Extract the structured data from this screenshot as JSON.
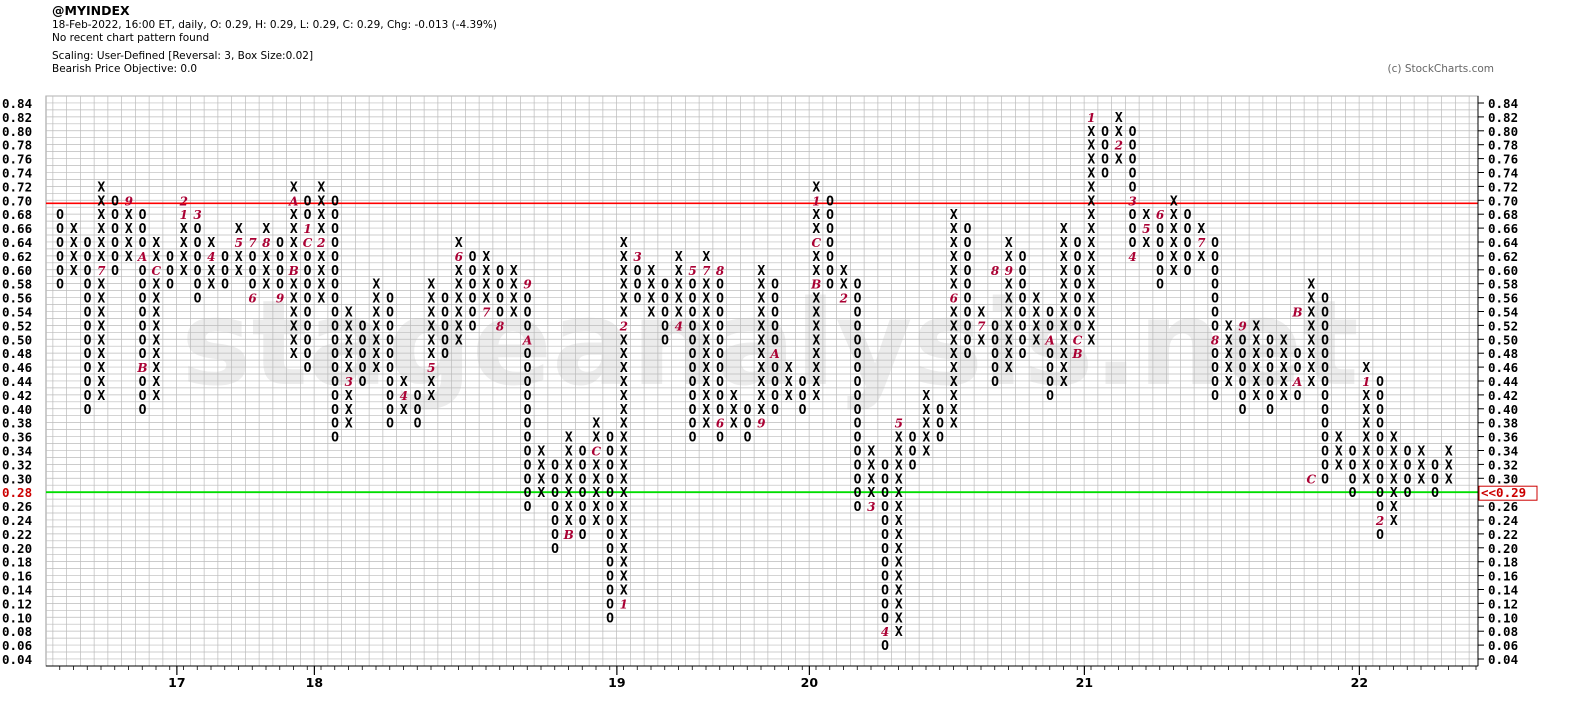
{
  "header": {
    "symbol": "@MYINDEX",
    "quote_line": "18-Feb-2022, 16:00 ET, daily, O: 0.29, H: 0.29, L: 0.29, C: 0.29, Chg: -0.013 (-4.39%)",
    "pattern_line": "No recent chart pattern found",
    "scaling_line": "Scaling: User-Defined [Reversal: 3, Box Size:0.02]",
    "objective_line": "Bearish Price Objective: 0.0"
  },
  "copyright": "(c) StockCharts.com",
  "watermark": "stageanalysis.net",
  "colors": {
    "resistance": "#ff0000",
    "support": "#00dd00",
    "month_marker": "#aa0033",
    "grid": "#bbbbbb",
    "watermark": "#ececec"
  },
  "chart_data": {
    "type": "point-and-figure",
    "box_size": 0.02,
    "reversal": 3,
    "ylim": [
      0.04,
      0.84
    ],
    "y_ticks": [
      "0.84",
      "0.82",
      "0.80",
      "0.78",
      "0.76",
      "0.74",
      "0.72",
      "0.70",
      "0.68",
      "0.66",
      "0.64",
      "0.62",
      "0.60",
      "0.58",
      "0.56",
      "0.54",
      "0.52",
      "0.50",
      "0.48",
      "0.46",
      "0.44",
      "0.42",
      "0.40",
      "0.38",
      "0.36",
      "0.34",
      "0.32",
      "0.30",
      "0.28",
      "0.26",
      "0.24",
      "0.22",
      "0.20",
      "0.18",
      "0.16",
      "0.14",
      "0.12",
      "0.10",
      "0.08",
      "0.06",
      "0.04"
    ],
    "x_labels": [
      {
        "label": "17",
        "column": 9
      },
      {
        "label": "18",
        "column": 19
      },
      {
        "label": "19",
        "column": 41
      },
      {
        "label": "20",
        "column": 55
      },
      {
        "label": "21",
        "column": 75
      },
      {
        "label": "22",
        "column": 95
      }
    ],
    "resistance_level": 0.7,
    "support_level": 0.29,
    "last_price_label": "<<0.29",
    "left_price_label": "0.28",
    "columns": [
      {
        "t": "O",
        "hi": 0.68,
        "lo": 0.58
      },
      {
        "t": "X",
        "hi": 0.66,
        "lo": 0.6
      },
      {
        "t": "O",
        "hi": 0.64,
        "lo": 0.4
      },
      {
        "t": "X",
        "hi": 0.72,
        "lo": 0.42
      },
      {
        "t": "O",
        "hi": 0.7,
        "lo": 0.6
      },
      {
        "t": "X",
        "hi": 0.7,
        "lo": 0.62
      },
      {
        "t": "O",
        "hi": 0.68,
        "lo": 0.4
      },
      {
        "t": "X",
        "hi": 0.64,
        "lo": 0.42
      },
      {
        "t": "O",
        "hi": 0.62,
        "lo": 0.58
      },
      {
        "t": "X",
        "hi": 0.7,
        "lo": 0.6
      },
      {
        "t": "O",
        "hi": 0.68,
        "lo": 0.56
      },
      {
        "t": "X",
        "hi": 0.64,
        "lo": 0.58
      },
      {
        "t": "O",
        "hi": 0.62,
        "lo": 0.58
      },
      {
        "t": "X",
        "hi": 0.66,
        "lo": 0.6
      },
      {
        "t": "O",
        "hi": 0.64,
        "lo": 0.56
      },
      {
        "t": "X",
        "hi": 0.66,
        "lo": 0.58
      },
      {
        "t": "O",
        "hi": 0.64,
        "lo": 0.56
      },
      {
        "t": "X",
        "hi": 0.72,
        "lo": 0.48
      },
      {
        "t": "O",
        "hi": 0.7,
        "lo": 0.46
      },
      {
        "t": "X",
        "hi": 0.72,
        "lo": 0.56
      },
      {
        "t": "O",
        "hi": 0.7,
        "lo": 0.36
      },
      {
        "t": "X",
        "hi": 0.54,
        "lo": 0.38
      },
      {
        "t": "O",
        "hi": 0.52,
        "lo": 0.44
      },
      {
        "t": "X",
        "hi": 0.58,
        "lo": 0.46
      },
      {
        "t": "O",
        "hi": 0.56,
        "lo": 0.38
      },
      {
        "t": "X",
        "hi": 0.44,
        "lo": 0.4
      },
      {
        "t": "O",
        "hi": 0.42,
        "lo": 0.38
      },
      {
        "t": "X",
        "hi": 0.58,
        "lo": 0.42
      },
      {
        "t": "O",
        "hi": 0.56,
        "lo": 0.48
      },
      {
        "t": "X",
        "hi": 0.64,
        "lo": 0.5
      },
      {
        "t": "O",
        "hi": 0.62,
        "lo": 0.52
      },
      {
        "t": "X",
        "hi": 0.62,
        "lo": 0.54
      },
      {
        "t": "O",
        "hi": 0.6,
        "lo": 0.52
      },
      {
        "t": "X",
        "hi": 0.6,
        "lo": 0.54
      },
      {
        "t": "O",
        "hi": 0.58,
        "lo": 0.26
      },
      {
        "t": "X",
        "hi": 0.34,
        "lo": 0.28
      },
      {
        "t": "O",
        "hi": 0.32,
        "lo": 0.2
      },
      {
        "t": "X",
        "hi": 0.36,
        "lo": 0.24
      },
      {
        "t": "O",
        "hi": 0.34,
        "lo": 0.22
      },
      {
        "t": "X",
        "hi": 0.38,
        "lo": 0.24
      },
      {
        "t": "O",
        "hi": 0.36,
        "lo": 0.1
      },
      {
        "t": "X",
        "hi": 0.64,
        "lo": 0.12
      },
      {
        "t": "O",
        "hi": 0.62,
        "lo": 0.56
      },
      {
        "t": "X",
        "hi": 0.6,
        "lo": 0.54
      },
      {
        "t": "O",
        "hi": 0.58,
        "lo": 0.5
      },
      {
        "t": "X",
        "hi": 0.62,
        "lo": 0.52
      },
      {
        "t": "O",
        "hi": 0.6,
        "lo": 0.36
      },
      {
        "t": "X",
        "hi": 0.62,
        "lo": 0.38
      },
      {
        "t": "O",
        "hi": 0.6,
        "lo": 0.36
      },
      {
        "t": "X",
        "hi": 0.42,
        "lo": 0.38
      },
      {
        "t": "O",
        "hi": 0.4,
        "lo": 0.36
      },
      {
        "t": "X",
        "hi": 0.6,
        "lo": 0.38
      },
      {
        "t": "O",
        "hi": 0.58,
        "lo": 0.4
      },
      {
        "t": "X",
        "hi": 0.46,
        "lo": 0.42
      },
      {
        "t": "O",
        "hi": 0.44,
        "lo": 0.4
      },
      {
        "t": "X",
        "hi": 0.72,
        "lo": 0.42
      },
      {
        "t": "O",
        "hi": 0.7,
        "lo": 0.58
      },
      {
        "t": "X",
        "hi": 0.6,
        "lo": 0.56
      },
      {
        "t": "O",
        "hi": 0.58,
        "lo": 0.26
      },
      {
        "t": "X",
        "hi": 0.34,
        "lo": 0.28
      },
      {
        "t": "O",
        "hi": 0.32,
        "lo": 0.06
      },
      {
        "t": "X",
        "hi": 0.38,
        "lo": 0.08
      },
      {
        "t": "O",
        "hi": 0.36,
        "lo": 0.32
      },
      {
        "t": "X",
        "hi": 0.42,
        "lo": 0.34
      },
      {
        "t": "O",
        "hi": 0.4,
        "lo": 0.36
      },
      {
        "t": "X",
        "hi": 0.68,
        "lo": 0.38
      },
      {
        "t": "O",
        "hi": 0.66,
        "lo": 0.48
      },
      {
        "t": "X",
        "hi": 0.54,
        "lo": 0.5
      },
      {
        "t": "O",
        "hi": 0.52,
        "lo": 0.44
      },
      {
        "t": "X",
        "hi": 0.64,
        "lo": 0.46
      },
      {
        "t": "O",
        "hi": 0.62,
        "lo": 0.48
      },
      {
        "t": "X",
        "hi": 0.56,
        "lo": 0.5
      },
      {
        "t": "O",
        "hi": 0.54,
        "lo": 0.42
      },
      {
        "t": "X",
        "hi": 0.66,
        "lo": 0.44
      },
      {
        "t": "O",
        "hi": 0.64,
        "lo": 0.48
      },
      {
        "t": "X",
        "hi": 0.82,
        "lo": 0.5
      },
      {
        "t": "O",
        "hi": 0.8,
        "lo": 0.74
      },
      {
        "t": "X",
        "hi": 0.82,
        "lo": 0.76
      },
      {
        "t": "O",
        "hi": 0.8,
        "lo": 0.62
      },
      {
        "t": "X",
        "hi": 0.68,
        "lo": 0.64
      },
      {
        "t": "O",
        "hi": 0.66,
        "lo": 0.58
      },
      {
        "t": "X",
        "hi": 0.7,
        "lo": 0.6
      },
      {
        "t": "O",
        "hi": 0.68,
        "lo": 0.6
      },
      {
        "t": "X",
        "hi": 0.66,
        "lo": 0.62
      },
      {
        "t": "O",
        "hi": 0.64,
        "lo": 0.42
      },
      {
        "t": "X",
        "hi": 0.52,
        "lo": 0.44
      },
      {
        "t": "O",
        "hi": 0.5,
        "lo": 0.4
      },
      {
        "t": "X",
        "hi": 0.52,
        "lo": 0.42
      },
      {
        "t": "O",
        "hi": 0.5,
        "lo": 0.4
      },
      {
        "t": "X",
        "hi": 0.5,
        "lo": 0.42
      },
      {
        "t": "O",
        "hi": 0.48,
        "lo": 0.42
      },
      {
        "t": "X",
        "hi": 0.58,
        "lo": 0.44
      },
      {
        "t": "O",
        "hi": 0.56,
        "lo": 0.3
      },
      {
        "t": "X",
        "hi": 0.36,
        "lo": 0.32
      },
      {
        "t": "O",
        "hi": 0.34,
        "lo": 0.28
      },
      {
        "t": "X",
        "hi": 0.46,
        "lo": 0.3
      },
      {
        "t": "O",
        "hi": 0.44,
        "lo": 0.22
      },
      {
        "t": "X",
        "hi": 0.36,
        "lo": 0.24
      },
      {
        "t": "O",
        "hi": 0.34,
        "lo": 0.28
      },
      {
        "t": "X",
        "hi": 0.34,
        "lo": 0.3
      },
      {
        "t": "O",
        "hi": 0.32,
        "lo": 0.28
      },
      {
        "t": "X",
        "hi": 0.34,
        "lo": 0.3
      }
    ],
    "month_markers": [
      {
        "col": 3,
        "v": 0.6,
        "m": "7"
      },
      {
        "col": 5,
        "v": 0.7,
        "m": "9"
      },
      {
        "col": 6,
        "v": 0.62,
        "m": "A"
      },
      {
        "col": 6,
        "v": 0.46,
        "m": "B"
      },
      {
        "col": 7,
        "v": 0.6,
        "m": "C"
      },
      {
        "col": 9,
        "v": 0.7,
        "m": "2"
      },
      {
        "col": 9,
        "v": 0.68,
        "m": "1"
      },
      {
        "col": 10,
        "v": 0.68,
        "m": "3"
      },
      {
        "col": 11,
        "v": 0.62,
        "m": "4"
      },
      {
        "col": 13,
        "v": 0.64,
        "m": "5"
      },
      {
        "col": 14,
        "v": 0.56,
        "m": "6"
      },
      {
        "col": 14,
        "v": 0.64,
        "m": "7"
      },
      {
        "col": 15,
        "v": 0.64,
        "m": "8"
      },
      {
        "col": 16,
        "v": 0.56,
        "m": "9"
      },
      {
        "col": 17,
        "v": 0.7,
        "m": "A"
      },
      {
        "col": 17,
        "v": 0.6,
        "m": "B"
      },
      {
        "col": 18,
        "v": 0.64,
        "m": "C"
      },
      {
        "col": 18,
        "v": 0.66,
        "m": "1"
      },
      {
        "col": 19,
        "v": 0.64,
        "m": "2"
      },
      {
        "col": 21,
        "v": 0.44,
        "m": "3"
      },
      {
        "col": 25,
        "v": 0.42,
        "m": "4"
      },
      {
        "col": 27,
        "v": 0.46,
        "m": "5"
      },
      {
        "col": 29,
        "v": 0.62,
        "m": "6"
      },
      {
        "col": 31,
        "v": 0.54,
        "m": "7"
      },
      {
        "col": 32,
        "v": 0.52,
        "m": "8"
      },
      {
        "col": 34,
        "v": 0.58,
        "m": "9"
      },
      {
        "col": 34,
        "v": 0.5,
        "m": "A"
      },
      {
        "col": 37,
        "v": 0.22,
        "m": "B"
      },
      {
        "col": 39,
        "v": 0.34,
        "m": "C"
      },
      {
        "col": 41,
        "v": 0.12,
        "m": "1"
      },
      {
        "col": 41,
        "v": 0.52,
        "m": "2"
      },
      {
        "col": 42,
        "v": 0.62,
        "m": "3"
      },
      {
        "col": 45,
        "v": 0.52,
        "m": "4"
      },
      {
        "col": 46,
        "v": 0.6,
        "m": "5"
      },
      {
        "col": 48,
        "v": 0.38,
        "m": "6"
      },
      {
        "col": 47,
        "v": 0.6,
        "m": "7"
      },
      {
        "col": 48,
        "v": 0.6,
        "m": "8"
      },
      {
        "col": 51,
        "v": 0.38,
        "m": "9"
      },
      {
        "col": 52,
        "v": 0.48,
        "m": "A"
      },
      {
        "col": 55,
        "v": 0.58,
        "m": "B"
      },
      {
        "col": 55,
        "v": 0.64,
        "m": "C"
      },
      {
        "col": 55,
        "v": 0.7,
        "m": "1"
      },
      {
        "col": 57,
        "v": 0.56,
        "m": "2"
      },
      {
        "col": 59,
        "v": 0.26,
        "m": "3"
      },
      {
        "col": 60,
        "v": 0.08,
        "m": "4"
      },
      {
        "col": 61,
        "v": 0.38,
        "m": "5"
      },
      {
        "col": 65,
        "v": 0.56,
        "m": "6"
      },
      {
        "col": 67,
        "v": 0.52,
        "m": "7"
      },
      {
        "col": 68,
        "v": 0.6,
        "m": "8"
      },
      {
        "col": 69,
        "v": 0.6,
        "m": "9"
      },
      {
        "col": 72,
        "v": 0.5,
        "m": "A"
      },
      {
        "col": 74,
        "v": 0.48,
        "m": "B"
      },
      {
        "col": 74,
        "v": 0.5,
        "m": "C"
      },
      {
        "col": 75,
        "v": 0.82,
        "m": "1"
      },
      {
        "col": 77,
        "v": 0.78,
        "m": "2"
      },
      {
        "col": 78,
        "v": 0.7,
        "m": "3"
      },
      {
        "col": 78,
        "v": 0.62,
        "m": "4"
      },
      {
        "col": 79,
        "v": 0.66,
        "m": "5"
      },
      {
        "col": 80,
        "v": 0.68,
        "m": "6"
      },
      {
        "col": 83,
        "v": 0.64,
        "m": "7"
      },
      {
        "col": 84,
        "v": 0.5,
        "m": "8"
      },
      {
        "col": 86,
        "v": 0.52,
        "m": "9"
      },
      {
        "col": 90,
        "v": 0.44,
        "m": "A"
      },
      {
        "col": 90,
        "v": 0.54,
        "m": "B"
      },
      {
        "col": 91,
        "v": 0.3,
        "m": "C"
      },
      {
        "col": 95,
        "v": 0.44,
        "m": "1"
      },
      {
        "col": 96,
        "v": 0.24,
        "m": "2"
      }
    ]
  }
}
